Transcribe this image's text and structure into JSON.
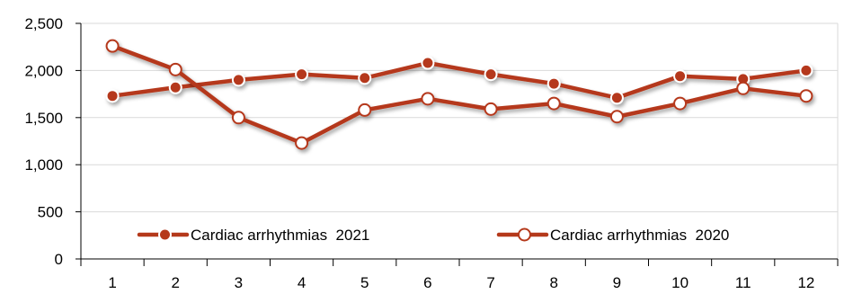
{
  "chart_data": {
    "type": "line",
    "title": "",
    "xlabel": "",
    "ylabel": "",
    "categories": [
      "1",
      "2",
      "3",
      "4",
      "5",
      "6",
      "7",
      "8",
      "9",
      "10",
      "11",
      "12"
    ],
    "ylim": [
      0,
      2500
    ],
    "yticks": [
      0,
      500,
      1000,
      1500,
      2000,
      2500
    ],
    "ytick_labels": [
      "0",
      "500",
      "1,000",
      "1,500",
      "2,000",
      "2,500"
    ],
    "grid": "horizontal",
    "legend_position": "bottom-inside",
    "series": [
      {
        "name": "Cardiac arrhythmias  2021",
        "color": "#B5391B",
        "marker": "filled-circle",
        "values": [
          1730,
          1820,
          1900,
          1960,
          1920,
          2080,
          1960,
          1860,
          1710,
          1940,
          1910,
          2000
        ]
      },
      {
        "name": "Cardiac arrhythmias  2020",
        "color": "#B5391B",
        "marker": "hollow-circle",
        "values": [
          2260,
          2010,
          1500,
          1230,
          1580,
          1700,
          1590,
          1650,
          1510,
          1650,
          1810,
          1730
        ]
      }
    ]
  }
}
